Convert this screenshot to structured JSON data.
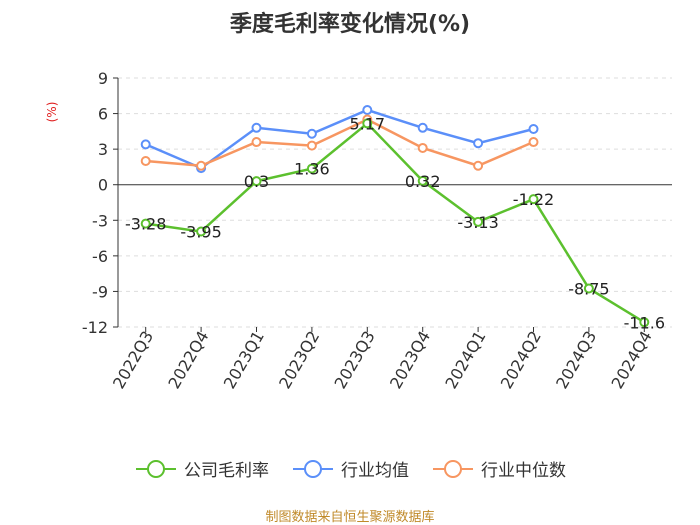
{
  "chart_data": {
    "type": "line",
    "title": "季度毛利率变化情况(%)",
    "ylabel": "(%)",
    "categories": [
      "2022Q3",
      "2022Q4",
      "2023Q1",
      "2023Q2",
      "2023Q3",
      "2023Q4",
      "2024Q1",
      "2024Q2",
      "2024Q3",
      "2024Q4"
    ],
    "ylim": [
      -12,
      9
    ],
    "yticks": [
      9,
      6,
      3,
      0,
      -3,
      -6,
      -9,
      -12
    ],
    "grid": "dashed horizontal",
    "legend_position": "bottom",
    "series": [
      {
        "name": "公司毛利率",
        "color": "#5cc02e",
        "values": [
          -3.28,
          -3.95,
          0.3,
          1.36,
          5.17,
          0.32,
          -3.13,
          -1.22,
          -8.75,
          -11.6
        ],
        "labels": [
          "-3.28",
          "-3.95",
          "0.3",
          "1.36",
          "5.17",
          "0.32",
          "-3.13",
          "-1.22",
          "-8.75",
          "-11.6"
        ]
      },
      {
        "name": "行业均值",
        "color": "#5b8ff9",
        "values": [
          3.4,
          1.4,
          4.8,
          4.3,
          6.3,
          4.8,
          3.5,
          4.7,
          null,
          null
        ]
      },
      {
        "name": "行业中位数",
        "color": "#f79661",
        "values": [
          2.0,
          1.6,
          3.6,
          3.3,
          5.5,
          3.1,
          1.6,
          3.6,
          null,
          null
        ]
      }
    ]
  },
  "source": "制图数据来自恒生聚源数据库"
}
